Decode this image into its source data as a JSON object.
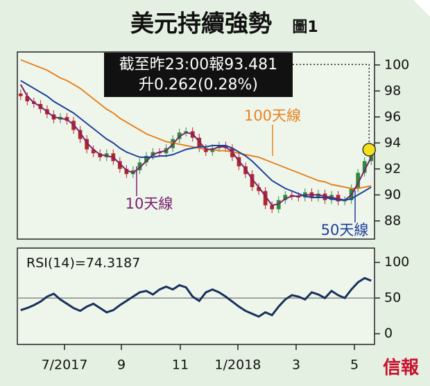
{
  "chart_data": [
    {
      "type": "candlestick",
      "title": "美元持續強勢",
      "figure_label": "圖1",
      "x": [
        0,
        1,
        2,
        3,
        4,
        5,
        6,
        7,
        8,
        9,
        10,
        11,
        12,
        13,
        14,
        15,
        16,
        17,
        18,
        19,
        20,
        21,
        22,
        23,
        24,
        25,
        26,
        27,
        28,
        29,
        30,
        31,
        32,
        33,
        34,
        35,
        36,
        37,
        38,
        39,
        40,
        41,
        42,
        43,
        44,
        45,
        46,
        47,
        48,
        49,
        50,
        51,
        52,
        53
      ],
      "open": [
        97.8,
        97.6,
        97.2,
        97.0,
        96.6,
        96.2,
        95.8,
        96.0,
        95.7,
        95.0,
        94.3,
        93.5,
        93.2,
        92.9,
        93.2,
        92.6,
        92.0,
        91.6,
        91.9,
        92.5,
        93.0,
        93.3,
        93.2,
        93.6,
        94.3,
        94.8,
        94.9,
        94.4,
        93.6,
        93.3,
        93.6,
        93.8,
        93.6,
        92.9,
        92.2,
        91.6,
        90.6,
        90.3,
        89.2,
        88.9,
        89.6,
        90.0,
        89.9,
        89.8,
        90.2,
        89.8,
        90.1,
        89.6,
        90.0,
        89.5,
        89.6,
        90.5,
        91.7,
        92.6
      ],
      "high": [
        98.1,
        97.9,
        97.5,
        97.3,
        96.9,
        96.5,
        96.3,
        96.3,
        96.0,
        95.3,
        94.6,
        93.8,
        93.5,
        93.5,
        93.5,
        92.9,
        92.3,
        92.2,
        92.8,
        93.3,
        93.6,
        93.6,
        93.9,
        94.6,
        95.1,
        95.2,
        95.2,
        94.7,
        93.9,
        93.9,
        94.1,
        94.1,
        93.9,
        93.2,
        92.5,
        91.9,
        90.9,
        90.6,
        89.5,
        89.9,
        90.3,
        90.3,
        90.2,
        90.5,
        90.5,
        90.4,
        90.4,
        90.3,
        90.3,
        89.9,
        90.8,
        92.0,
        92.9,
        93.78
      ],
      "low": [
        97.3,
        96.9,
        96.7,
        96.3,
        95.9,
        95.5,
        95.5,
        95.4,
        94.7,
        94.0,
        93.2,
        92.9,
        92.6,
        92.6,
        92.3,
        91.7,
        91.3,
        91.3,
        91.6,
        92.2,
        92.7,
        92.9,
        92.9,
        93.3,
        94.0,
        94.5,
        94.1,
        93.3,
        93.0,
        93.0,
        93.3,
        93.3,
        92.6,
        91.9,
        91.3,
        90.3,
        90.0,
        88.9,
        88.6,
        88.6,
        89.3,
        89.6,
        89.5,
        89.5,
        89.5,
        89.5,
        89.3,
        89.3,
        89.2,
        89.2,
        89.3,
        90.2,
        91.4,
        92.3
      ],
      "close": [
        97.6,
        97.2,
        97.0,
        96.6,
        96.2,
        95.8,
        96.0,
        95.7,
        95.0,
        94.3,
        93.5,
        93.2,
        92.9,
        93.2,
        92.6,
        92.0,
        91.6,
        91.9,
        92.5,
        93.0,
        93.3,
        93.2,
        93.6,
        94.3,
        94.8,
        94.9,
        94.4,
        93.6,
        93.3,
        93.6,
        93.8,
        93.6,
        92.9,
        92.2,
        91.6,
        90.6,
        90.3,
        89.2,
        88.9,
        89.6,
        90.0,
        89.9,
        89.8,
        90.2,
        89.8,
        90.1,
        89.6,
        90.0,
        89.5,
        89.6,
        90.5,
        91.7,
        92.6,
        93.48
      ],
      "up_color": "#2e8b3e",
      "down_color": "#b3262b",
      "series": [
        {
          "name": "100天線",
          "color": "#e8821e",
          "values": [
            100.4,
            100.2,
            100.0,
            99.8,
            99.6,
            99.3,
            99.0,
            98.8,
            98.5,
            98.2,
            97.8,
            97.4,
            97.0,
            96.6,
            96.3,
            95.9,
            95.6,
            95.3,
            95.0,
            94.7,
            94.5,
            94.3,
            94.1,
            94.0,
            93.9,
            93.8,
            93.7,
            93.6,
            93.5,
            93.5,
            93.4,
            93.4,
            93.3,
            93.2,
            93.1,
            93.0,
            92.9,
            92.7,
            92.5,
            92.3,
            92.1,
            91.9,
            91.7,
            91.5,
            91.3,
            91.1,
            91.0,
            90.8,
            90.7,
            90.6,
            90.5,
            90.5,
            90.6,
            90.7
          ]
        },
        {
          "name": "10天線",
          "color": "#7a1f6e",
          "values": [
            98.5,
            97.6,
            97.1,
            96.8,
            96.4,
            96.0,
            95.9,
            95.8,
            95.4,
            94.8,
            94.0,
            93.5,
            93.1,
            93.0,
            92.9,
            92.4,
            91.9,
            91.7,
            92.1,
            92.6,
            93.1,
            93.3,
            93.4,
            93.9,
            94.5,
            94.8,
            94.7,
            94.1,
            93.5,
            93.5,
            93.7,
            93.7,
            93.3,
            92.6,
            92.0,
            91.2,
            90.6,
            89.9,
            89.2,
            89.3,
            89.7,
            89.9,
            89.9,
            90.0,
            90.0,
            90.0,
            89.9,
            89.8,
            89.7,
            89.6,
            90.0,
            90.9,
            91.9,
            92.9
          ]
        },
        {
          "name": "50天線",
          "color": "#1f3f99",
          "values": [
            98.8,
            98.5,
            98.2,
            97.9,
            97.6,
            97.2,
            96.9,
            96.6,
            96.3,
            95.9,
            95.5,
            95.1,
            94.7,
            94.3,
            94.0,
            93.6,
            93.3,
            93.1,
            92.9,
            92.9,
            92.9,
            93.0,
            93.0,
            93.1,
            93.3,
            93.5,
            93.6,
            93.7,
            93.7,
            93.8,
            93.8,
            93.8,
            93.6,
            93.3,
            93.0,
            92.6,
            92.1,
            91.6,
            91.1,
            90.8,
            90.5,
            90.3,
            90.1,
            89.9,
            89.8,
            89.8,
            89.8,
            89.7,
            89.6,
            89.6,
            89.7,
            90.0,
            90.3,
            90.6
          ]
        }
      ],
      "annotation": [
        "截至昨23:00報93.481",
        "升0.262(0.28%)"
      ],
      "xlim": [
        -0.5,
        53.5
      ],
      "ylim": [
        86.6,
        101
      ],
      "yticks": [
        88,
        90,
        92,
        94,
        96,
        98,
        100
      ]
    },
    {
      "type": "line",
      "label": "RSI(14)=74.3187",
      "x": [
        0,
        1,
        2,
        3,
        4,
        5,
        6,
        7,
        8,
        9,
        10,
        11,
        12,
        13,
        14,
        15,
        16,
        17,
        18,
        19,
        20,
        21,
        22,
        23,
        24,
        25,
        26,
        27,
        28,
        29,
        30,
        31,
        32,
        33,
        34,
        35,
        36,
        37,
        38,
        39,
        40,
        41,
        42,
        43,
        44,
        45,
        46,
        47,
        48,
        49,
        50,
        51,
        52,
        53
      ],
      "series": [
        {
          "color": "#1a2f5a",
          "values": [
            33,
            36,
            40,
            45,
            52,
            56,
            48,
            42,
            36,
            32,
            38,
            42,
            36,
            30,
            33,
            40,
            46,
            52,
            58,
            60,
            55,
            62,
            66,
            62,
            68,
            65,
            52,
            46,
            58,
            62,
            58,
            52,
            45,
            38,
            32,
            28,
            24,
            30,
            26,
            38,
            48,
            54,
            52,
            48,
            58,
            55,
            50,
            60,
            54,
            50,
            62,
            72,
            78,
            74.3
          ]
        }
      ],
      "reference_line": 50,
      "xlim": [
        -0.5,
        53.5
      ],
      "ylim": [
        -15,
        120
      ],
      "yticks": [
        0,
        50,
        100
      ],
      "xticks": [
        {
          "value": 6.63,
          "label": "7/2017"
        },
        {
          "value": 15.23,
          "label": "9"
        },
        {
          "value": 24.14,
          "label": "11"
        },
        {
          "value": 32.84,
          "label": "1/2018"
        },
        {
          "value": 41.65,
          "label": "3"
        },
        {
          "value": 50.46,
          "label": "5"
        }
      ]
    }
  ],
  "source": "信報"
}
